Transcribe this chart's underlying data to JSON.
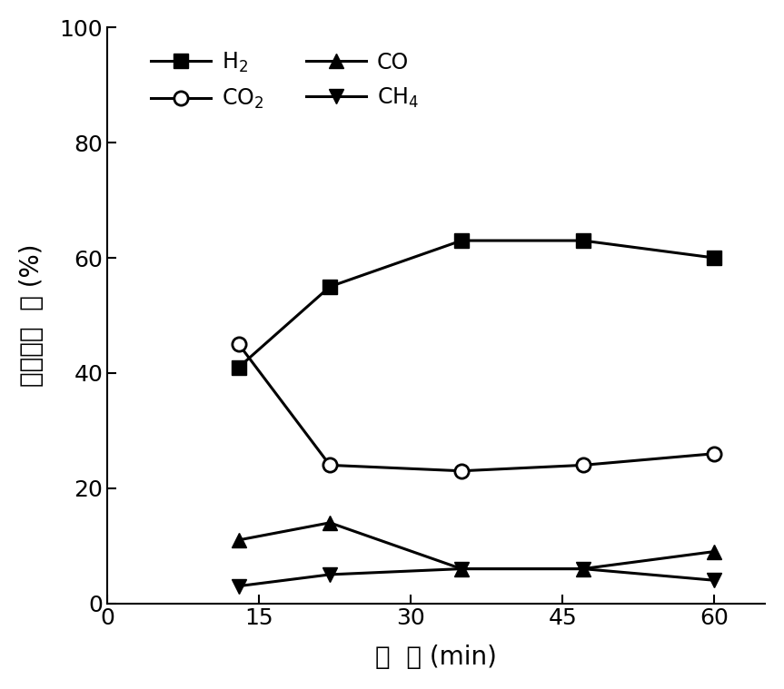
{
  "x": [
    13,
    22,
    35,
    47,
    60
  ],
  "H2": [
    41,
    55,
    63,
    63,
    60
  ],
  "CO2": [
    45,
    24,
    23,
    24,
    26
  ],
  "CO": [
    11,
    14,
    6,
    6,
    9
  ],
  "CH4": [
    3,
    5,
    6,
    6,
    4
  ],
  "xlabel": "时  间 (min)",
  "ylabel": "出口气组  成 (%)",
  "xlim": [
    0,
    65
  ],
  "ylim": [
    0,
    100
  ],
  "xticks": [
    0,
    15,
    30,
    45,
    60
  ],
  "yticks": [
    0,
    20,
    40,
    60,
    80,
    100
  ],
  "legend_H2": "H$_2$",
  "legend_CO2": "CO$_2$",
  "legend_CO": "CO",
  "legend_CH4": "CH$_4$",
  "line_color": "#000000",
  "bg_color": "#ffffff",
  "fontsize_label": 20,
  "fontsize_tick": 18,
  "fontsize_legend": 17,
  "linewidth": 2.2,
  "markersize": 11
}
